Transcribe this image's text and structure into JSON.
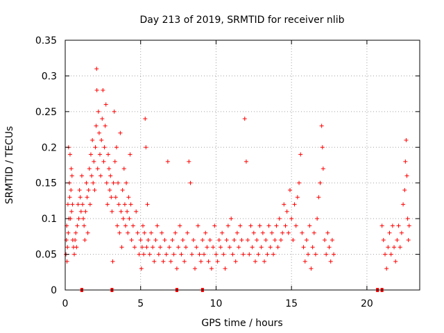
{
  "chart_data": {
    "type": "scatter",
    "title": "Day 213 of 2019, SRMTID for receiver nlib",
    "xlabel": "GPS time / hours",
    "ylabel": "SRMTID / TECUs",
    "xlim": [
      0,
      23.5
    ],
    "ylim": [
      0,
      0.35
    ],
    "x_ticks": [
      "0",
      "5",
      "10",
      "15",
      "20"
    ],
    "x_tick_values": [
      0,
      5,
      10,
      15,
      20
    ],
    "y_ticks": [
      "0",
      "0.05",
      "0.1",
      "0.15",
      "0.2",
      "0.25",
      "0.3",
      "0.35"
    ],
    "y_tick_values": [
      0,
      0.05,
      0.1,
      0.15,
      0.2,
      0.25,
      0.3,
      0.35
    ],
    "grid": true,
    "marker": "+",
    "color": "#ff0000",
    "series": [
      {
        "points": [
          [
            0.05,
            0.05
          ],
          [
            0.08,
            0.07
          ],
          [
            0.1,
            0.09
          ],
          [
            0.12,
            0.04
          ],
          [
            0.15,
            0.06
          ],
          [
            0.18,
            0.12
          ],
          [
            0.2,
            0.08
          ],
          [
            0.22,
            0.2
          ],
          [
            0.25,
            0.1
          ],
          [
            0.28,
            0.15
          ],
          [
            0.3,
            0.13
          ],
          [
            0.32,
            0.19
          ],
          [
            0.35,
            0.1
          ],
          [
            0.38,
            0.14
          ],
          [
            0.4,
            0.17
          ],
          [
            0.42,
            0.11
          ],
          [
            0.45,
            0.16
          ],
          [
            0.48,
            0.12
          ],
          [
            0.5,
            0.07
          ],
          [
            0.55,
            0.06
          ],
          [
            0.6,
            0.05
          ],
          [
            0.65,
            0.07
          ],
          [
            0.7,
            0.08
          ],
          [
            0.75,
            0.06
          ],
          [
            0.8,
            0.09
          ],
          [
            0.85,
            0.12
          ],
          [
            0.9,
            0.1
          ],
          [
            0.95,
            0.14
          ],
          [
            1.0,
            0.13
          ],
          [
            1.05,
            0.11
          ],
          [
            1.1,
            0.16
          ],
          [
            1.15,
            0.12
          ],
          [
            1.2,
            0.1
          ],
          [
            1.25,
            0.09
          ],
          [
            1.3,
            0.07
          ],
          [
            1.35,
            0.11
          ],
          [
            1.4,
            0.15
          ],
          [
            1.45,
            0.13
          ],
          [
            1.5,
            0.08
          ],
          [
            1.55,
            0.14
          ],
          [
            1.6,
            0.17
          ],
          [
            1.65,
            0.12
          ],
          [
            1.7,
            0.19
          ],
          [
            1.75,
            0.16
          ],
          [
            1.8,
            0.21
          ],
          [
            1.85,
            0.15
          ],
          [
            1.9,
            0.18
          ],
          [
            1.95,
            0.14
          ],
          [
            2.0,
            0.2
          ],
          [
            2.05,
            0.23
          ],
          [
            2.08,
            0.31
          ],
          [
            2.1,
            0.28
          ],
          [
            2.15,
            0.17
          ],
          [
            2.2,
            0.25
          ],
          [
            2.25,
            0.22
          ],
          [
            2.3,
            0.19
          ],
          [
            2.35,
            0.16
          ],
          [
            2.4,
            0.21
          ],
          [
            2.45,
            0.24
          ],
          [
            2.5,
            0.28
          ],
          [
            2.55,
            0.18
          ],
          [
            2.6,
            0.2
          ],
          [
            2.65,
            0.23
          ],
          [
            2.7,
            0.26
          ],
          [
            2.75,
            0.15
          ],
          [
            2.8,
            0.12
          ],
          [
            2.85,
            0.19
          ],
          [
            2.9,
            0.17
          ],
          [
            2.95,
            0.14
          ],
          [
            3.0,
            0.16
          ],
          [
            3.05,
            0.13
          ],
          [
            3.1,
            0.11
          ],
          [
            3.15,
            0.04
          ],
          [
            3.2,
            0.15
          ],
          [
            3.25,
            0.25
          ],
          [
            3.3,
            0.18
          ],
          [
            3.35,
            0.13
          ],
          [
            3.4,
            0.2
          ],
          [
            3.45,
            0.09
          ],
          [
            3.5,
            0.15
          ],
          [
            3.55,
            0.12
          ],
          [
            3.6,
            0.08
          ],
          [
            3.65,
            0.22
          ],
          [
            3.7,
            0.11
          ],
          [
            3.75,
            0.06
          ],
          [
            3.8,
            0.14
          ],
          [
            3.85,
            0.1
          ],
          [
            3.9,
            0.17
          ],
          [
            3.95,
            0.12
          ],
          [
            4.0,
            0.09
          ],
          [
            4.05,
            0.15
          ],
          [
            4.1,
            0.11
          ],
          [
            4.15,
            0.08
          ],
          [
            4.2,
            0.13
          ],
          [
            4.25,
            0.1
          ],
          [
            4.3,
            0.19
          ],
          [
            4.35,
            0.12
          ],
          [
            4.4,
            0.07
          ],
          [
            4.5,
            0.09
          ],
          [
            4.6,
            0.06
          ],
          [
            4.7,
            0.11
          ],
          [
            4.8,
            0.08
          ],
          [
            4.9,
            0.05
          ],
          [
            5.0,
            0.07
          ],
          [
            5.05,
            0.03
          ],
          [
            5.1,
            0.06
          ],
          [
            5.15,
            0.09
          ],
          [
            5.2,
            0.05
          ],
          [
            5.25,
            0.08
          ],
          [
            5.3,
            0.24
          ],
          [
            5.35,
            0.2
          ],
          [
            5.4,
            0.06
          ],
          [
            5.45,
            0.12
          ],
          [
            5.5,
            0.07
          ],
          [
            5.6,
            0.05
          ],
          [
            5.7,
            0.08
          ],
          [
            5.8,
            0.06
          ],
          [
            5.9,
            0.04
          ],
          [
            6.0,
            0.07
          ],
          [
            6.1,
            0.09
          ],
          [
            6.2,
            0.05
          ],
          [
            6.3,
            0.06
          ],
          [
            6.4,
            0.08
          ],
          [
            6.5,
            0.04
          ],
          [
            6.6,
            0.07
          ],
          [
            6.7,
            0.05
          ],
          [
            6.8,
            0.18
          ],
          [
            6.9,
            0.06
          ],
          [
            7.0,
            0.04
          ],
          [
            7.1,
            0.07
          ],
          [
            7.2,
            0.05
          ],
          [
            7.3,
            0.08
          ],
          [
            7.4,
            0.03
          ],
          [
            7.5,
            0.06
          ],
          [
            7.6,
            0.09
          ],
          [
            7.7,
            0.05
          ],
          [
            7.8,
            0.07
          ],
          [
            7.9,
            0.04
          ],
          [
            8.0,
            0.06
          ],
          [
            8.1,
            0.08
          ],
          [
            8.2,
            0.18
          ],
          [
            8.3,
            0.15
          ],
          [
            8.4,
            0.05
          ],
          [
            8.5,
            0.07
          ],
          [
            8.6,
            0.03
          ],
          [
            8.7,
            0.06
          ],
          [
            8.8,
            0.09
          ],
          [
            8.9,
            0.05
          ],
          [
            9.0,
            0.04
          ],
          [
            9.1,
            0.07
          ],
          [
            9.2,
            0.05
          ],
          [
            9.3,
            0.08
          ],
          [
            9.4,
            0.06
          ],
          [
            9.5,
            0.04
          ],
          [
            9.6,
            0.07
          ],
          [
            9.7,
            0.03
          ],
          [
            9.8,
            0.06
          ],
          [
            9.9,
            0.09
          ],
          [
            10.0,
            0.05
          ],
          [
            10.1,
            0.04
          ],
          [
            10.2,
            0.07
          ],
          [
            10.3,
            0.06
          ],
          [
            10.4,
            0.08
          ],
          [
            10.5,
            0.05
          ],
          [
            10.6,
            0.03
          ],
          [
            10.7,
            0.07
          ],
          [
            10.8,
            0.09
          ],
          [
            10.9,
            0.06
          ],
          [
            11.0,
            0.1
          ],
          [
            11.1,
            0.05
          ],
          [
            11.2,
            0.07
          ],
          [
            11.3,
            0.04
          ],
          [
            11.4,
            0.08
          ],
          [
            11.5,
            0.06
          ],
          [
            11.6,
            0.09
          ],
          [
            11.7,
            0.07
          ],
          [
            11.8,
            0.05
          ],
          [
            11.9,
            0.24
          ],
          [
            12.0,
            0.18
          ],
          [
            12.1,
            0.07
          ],
          [
            12.2,
            0.05
          ],
          [
            12.3,
            0.09
          ],
          [
            12.4,
            0.06
          ],
          [
            12.5,
            0.08
          ],
          [
            12.6,
            0.04
          ],
          [
            12.7,
            0.07
          ],
          [
            12.8,
            0.05
          ],
          [
            12.9,
            0.09
          ],
          [
            13.0,
            0.06
          ],
          [
            13.1,
            0.08
          ],
          [
            13.2,
            0.04
          ],
          [
            13.3,
            0.07
          ],
          [
            13.4,
            0.05
          ],
          [
            13.5,
            0.09
          ],
          [
            13.6,
            0.06
          ],
          [
            13.7,
            0.08
          ],
          [
            13.8,
            0.05
          ],
          [
            13.9,
            0.07
          ],
          [
            14.0,
            0.09
          ],
          [
            14.1,
            0.06
          ],
          [
            14.2,
            0.1
          ],
          [
            14.3,
            0.07
          ],
          [
            14.4,
            0.08
          ],
          [
            14.5,
            0.12
          ],
          [
            14.6,
            0.09
          ],
          [
            14.7,
            0.11
          ],
          [
            14.8,
            0.08
          ],
          [
            14.9,
            0.14
          ],
          [
            15.0,
            0.1
          ],
          [
            15.1,
            0.07
          ],
          [
            15.2,
            0.12
          ],
          [
            15.3,
            0.09
          ],
          [
            15.4,
            0.13
          ],
          [
            15.5,
            0.15
          ],
          [
            15.6,
            0.19
          ],
          [
            15.7,
            0.08
          ],
          [
            15.8,
            0.06
          ],
          [
            15.9,
            0.04
          ],
          [
            16.0,
            0.07
          ],
          [
            16.1,
            0.05
          ],
          [
            16.2,
            0.09
          ],
          [
            16.3,
            0.03
          ],
          [
            16.4,
            0.06
          ],
          [
            16.5,
            0.08
          ],
          [
            16.6,
            0.05
          ],
          [
            16.7,
            0.1
          ],
          [
            16.8,
            0.13
          ],
          [
            16.9,
            0.15
          ],
          [
            17.0,
            0.23
          ],
          [
            17.05,
            0.2
          ],
          [
            17.1,
            0.17
          ],
          [
            17.2,
            0.07
          ],
          [
            17.3,
            0.05
          ],
          [
            17.4,
            0.08
          ],
          [
            17.5,
            0.06
          ],
          [
            17.6,
            0.04
          ],
          [
            17.7,
            0.07
          ],
          [
            17.8,
            0.05
          ],
          [
            21.0,
            0.09
          ],
          [
            21.1,
            0.07
          ],
          [
            21.2,
            0.05
          ],
          [
            21.3,
            0.03
          ],
          [
            21.4,
            0.06
          ],
          [
            21.5,
            0.08
          ],
          [
            21.6,
            0.05
          ],
          [
            21.7,
            0.09
          ],
          [
            21.8,
            0.06
          ],
          [
            21.9,
            0.04
          ],
          [
            22.0,
            0.07
          ],
          [
            22.1,
            0.09
          ],
          [
            22.2,
            0.06
          ],
          [
            22.3,
            0.08
          ],
          [
            22.4,
            0.12
          ],
          [
            22.5,
            0.14
          ],
          [
            22.55,
            0.18
          ],
          [
            22.6,
            0.21
          ],
          [
            22.65,
            0.16
          ],
          [
            22.7,
            0.1
          ],
          [
            22.75,
            0.07
          ],
          [
            22.8,
            0.09
          ]
        ]
      }
    ],
    "zero_markers_x": [
      1.1,
      3.1,
      7.4,
      9.1,
      20.7,
      21.0
    ]
  }
}
